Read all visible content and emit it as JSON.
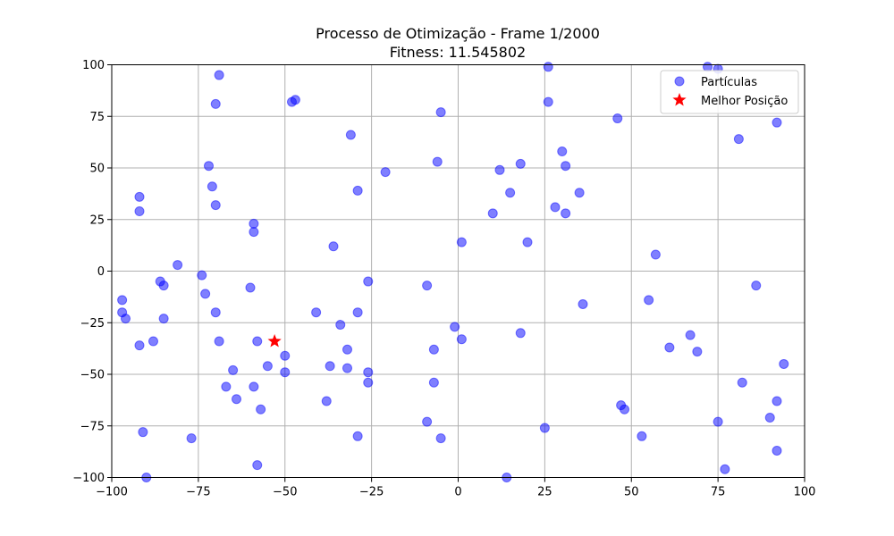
{
  "chart_data": {
    "type": "scatter",
    "title": "Processo de Otimização - Frame 1/2000",
    "subtitle": "Fitness: 11.545802",
    "xlabel": "",
    "ylabel": "",
    "xlim": [
      -100,
      100
    ],
    "ylim": [
      -100,
      100
    ],
    "x_ticks": [
      "−100",
      "−75",
      "−50",
      "−25",
      "0",
      "25",
      "50",
      "75",
      "100"
    ],
    "y_ticks": [
      "100",
      "75",
      "50",
      "25",
      "0",
      "−25",
      "−50",
      "−75",
      "−100"
    ],
    "grid": true,
    "legend_position": "top-right",
    "series": [
      {
        "name": "Partículas",
        "color": "#0000ff",
        "marker": "circle",
        "points": [
          [
            -69,
            95
          ],
          [
            -70,
            81
          ],
          [
            -48,
            82
          ],
          [
            -47,
            83
          ],
          [
            26,
            99
          ],
          [
            26,
            82
          ],
          [
            -5,
            77
          ],
          [
            46,
            74
          ],
          [
            72,
            99
          ],
          [
            75,
            98
          ],
          [
            92,
            72
          ],
          [
            81,
            64
          ],
          [
            -31,
            66
          ],
          [
            -72,
            51
          ],
          [
            -71,
            41
          ],
          [
            -70,
            32
          ],
          [
            -21,
            48
          ],
          [
            -29,
            39
          ],
          [
            -6,
            53
          ],
          [
            12,
            49
          ],
          [
            15,
            38
          ],
          [
            18,
            52
          ],
          [
            30,
            58
          ],
          [
            31,
            51
          ],
          [
            35,
            38
          ],
          [
            -92,
            36
          ],
          [
            -92,
            29
          ],
          [
            -59,
            23
          ],
          [
            -59,
            19
          ],
          [
            10,
            28
          ],
          [
            28,
            31
          ],
          [
            31,
            28
          ],
          [
            -36,
            12
          ],
          [
            1,
            14
          ],
          [
            20,
            14
          ],
          [
            57,
            8
          ],
          [
            -81,
            3
          ],
          [
            -74,
            -2
          ],
          [
            -86,
            -5
          ],
          [
            -85,
            -7
          ],
          [
            -73,
            -11
          ],
          [
            -60,
            -8
          ],
          [
            -26,
            -5
          ],
          [
            -9,
            -7
          ],
          [
            86,
            -7
          ],
          [
            -97,
            -14
          ],
          [
            -97,
            -20
          ],
          [
            -96,
            -23
          ],
          [
            -70,
            -20
          ],
          [
            -85,
            -23
          ],
          [
            -41,
            -20
          ],
          [
            -29,
            -20
          ],
          [
            -34,
            -26
          ],
          [
            -1,
            -27
          ],
          [
            1,
            -33
          ],
          [
            36,
            -16
          ],
          [
            55,
            -14
          ],
          [
            -92,
            -36
          ],
          [
            -88,
            -34
          ],
          [
            -69,
            -34
          ],
          [
            -58,
            -34
          ],
          [
            -50,
            -41
          ],
          [
            -32,
            -38
          ],
          [
            -7,
            -38
          ],
          [
            18,
            -30
          ],
          [
            61,
            -37
          ],
          [
            67,
            -31
          ],
          [
            69,
            -39
          ],
          [
            -37,
            -46
          ],
          [
            -32,
            -47
          ],
          [
            -26,
            -49
          ],
          [
            -55,
            -46
          ],
          [
            -50,
            -49
          ],
          [
            -65,
            -48
          ],
          [
            94,
            -45
          ],
          [
            -67,
            -56
          ],
          [
            -59,
            -56
          ],
          [
            -64,
            -62
          ],
          [
            -26,
            -54
          ],
          [
            -7,
            -54
          ],
          [
            82,
            -54
          ],
          [
            -38,
            -63
          ],
          [
            -57,
            -67
          ],
          [
            47,
            -65
          ],
          [
            48,
            -67
          ],
          [
            92,
            -63
          ],
          [
            -9,
            -73
          ],
          [
            25,
            -76
          ],
          [
            75,
            -73
          ],
          [
            90,
            -71
          ],
          [
            -91,
            -78
          ],
          [
            -77,
            -81
          ],
          [
            -29,
            -80
          ],
          [
            -5,
            -81
          ],
          [
            53,
            -80
          ],
          [
            92,
            -87
          ],
          [
            -58,
            -94
          ],
          [
            77,
            -96
          ],
          [
            -90,
            -100
          ],
          [
            14,
            -100
          ]
        ]
      },
      {
        "name": "Melhor Posição",
        "color": "#ff0000",
        "marker": "star",
        "points": [
          [
            -53,
            -34
          ]
        ]
      }
    ]
  }
}
